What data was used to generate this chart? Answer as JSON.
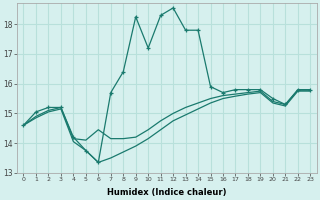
{
  "title": "",
  "xlabel": "Humidex (Indice chaleur)",
  "ylabel": "",
  "background_color": "#d6f0ee",
  "grid_color": "#b8e0db",
  "line_color": "#1a7a6e",
  "ylim": [
    13,
    18.7
  ],
  "xlim": [
    -0.5,
    23.5
  ],
  "yticks": [
    13,
    14,
    15,
    16,
    17,
    18
  ],
  "xticks": [
    0,
    1,
    2,
    3,
    4,
    5,
    6,
    7,
    8,
    9,
    10,
    11,
    12,
    13,
    14,
    15,
    16,
    17,
    18,
    19,
    20,
    21,
    22,
    23
  ],
  "line1_x": [
    0,
    1,
    2,
    3,
    4,
    5,
    6,
    7,
    8,
    9,
    10,
    11,
    12,
    13,
    14,
    15,
    16,
    17,
    18,
    19,
    20,
    21,
    22,
    23
  ],
  "line1_y": [
    14.6,
    15.05,
    15.2,
    15.2,
    14.2,
    13.75,
    13.35,
    15.7,
    16.4,
    18.25,
    17.2,
    18.3,
    18.55,
    17.8,
    17.8,
    15.9,
    15.7,
    15.8,
    15.8,
    15.8,
    15.5,
    15.3,
    15.8,
    15.8
  ],
  "line2_x": [
    0,
    1,
    2,
    3,
    4,
    5,
    6,
    7,
    8,
    9,
    10,
    11,
    12,
    13,
    14,
    15,
    16,
    17,
    18,
    19,
    20,
    21,
    22,
    23
  ],
  "line2_y": [
    14.6,
    14.9,
    15.1,
    15.2,
    14.15,
    14.1,
    14.45,
    14.15,
    14.15,
    14.2,
    14.45,
    14.75,
    15.0,
    15.2,
    15.35,
    15.5,
    15.6,
    15.65,
    15.7,
    15.75,
    15.4,
    15.3,
    15.78,
    15.78
  ],
  "line3_x": [
    0,
    1,
    2,
    3,
    4,
    5,
    6,
    7,
    8,
    9,
    10,
    11,
    12,
    13,
    14,
    15,
    16,
    17,
    18,
    19,
    20,
    21,
    22,
    23
  ],
  "line3_y": [
    14.6,
    14.85,
    15.05,
    15.15,
    14.05,
    13.75,
    13.35,
    13.5,
    13.7,
    13.9,
    14.15,
    14.45,
    14.75,
    14.95,
    15.15,
    15.35,
    15.5,
    15.58,
    15.65,
    15.7,
    15.35,
    15.25,
    15.75,
    15.75
  ]
}
